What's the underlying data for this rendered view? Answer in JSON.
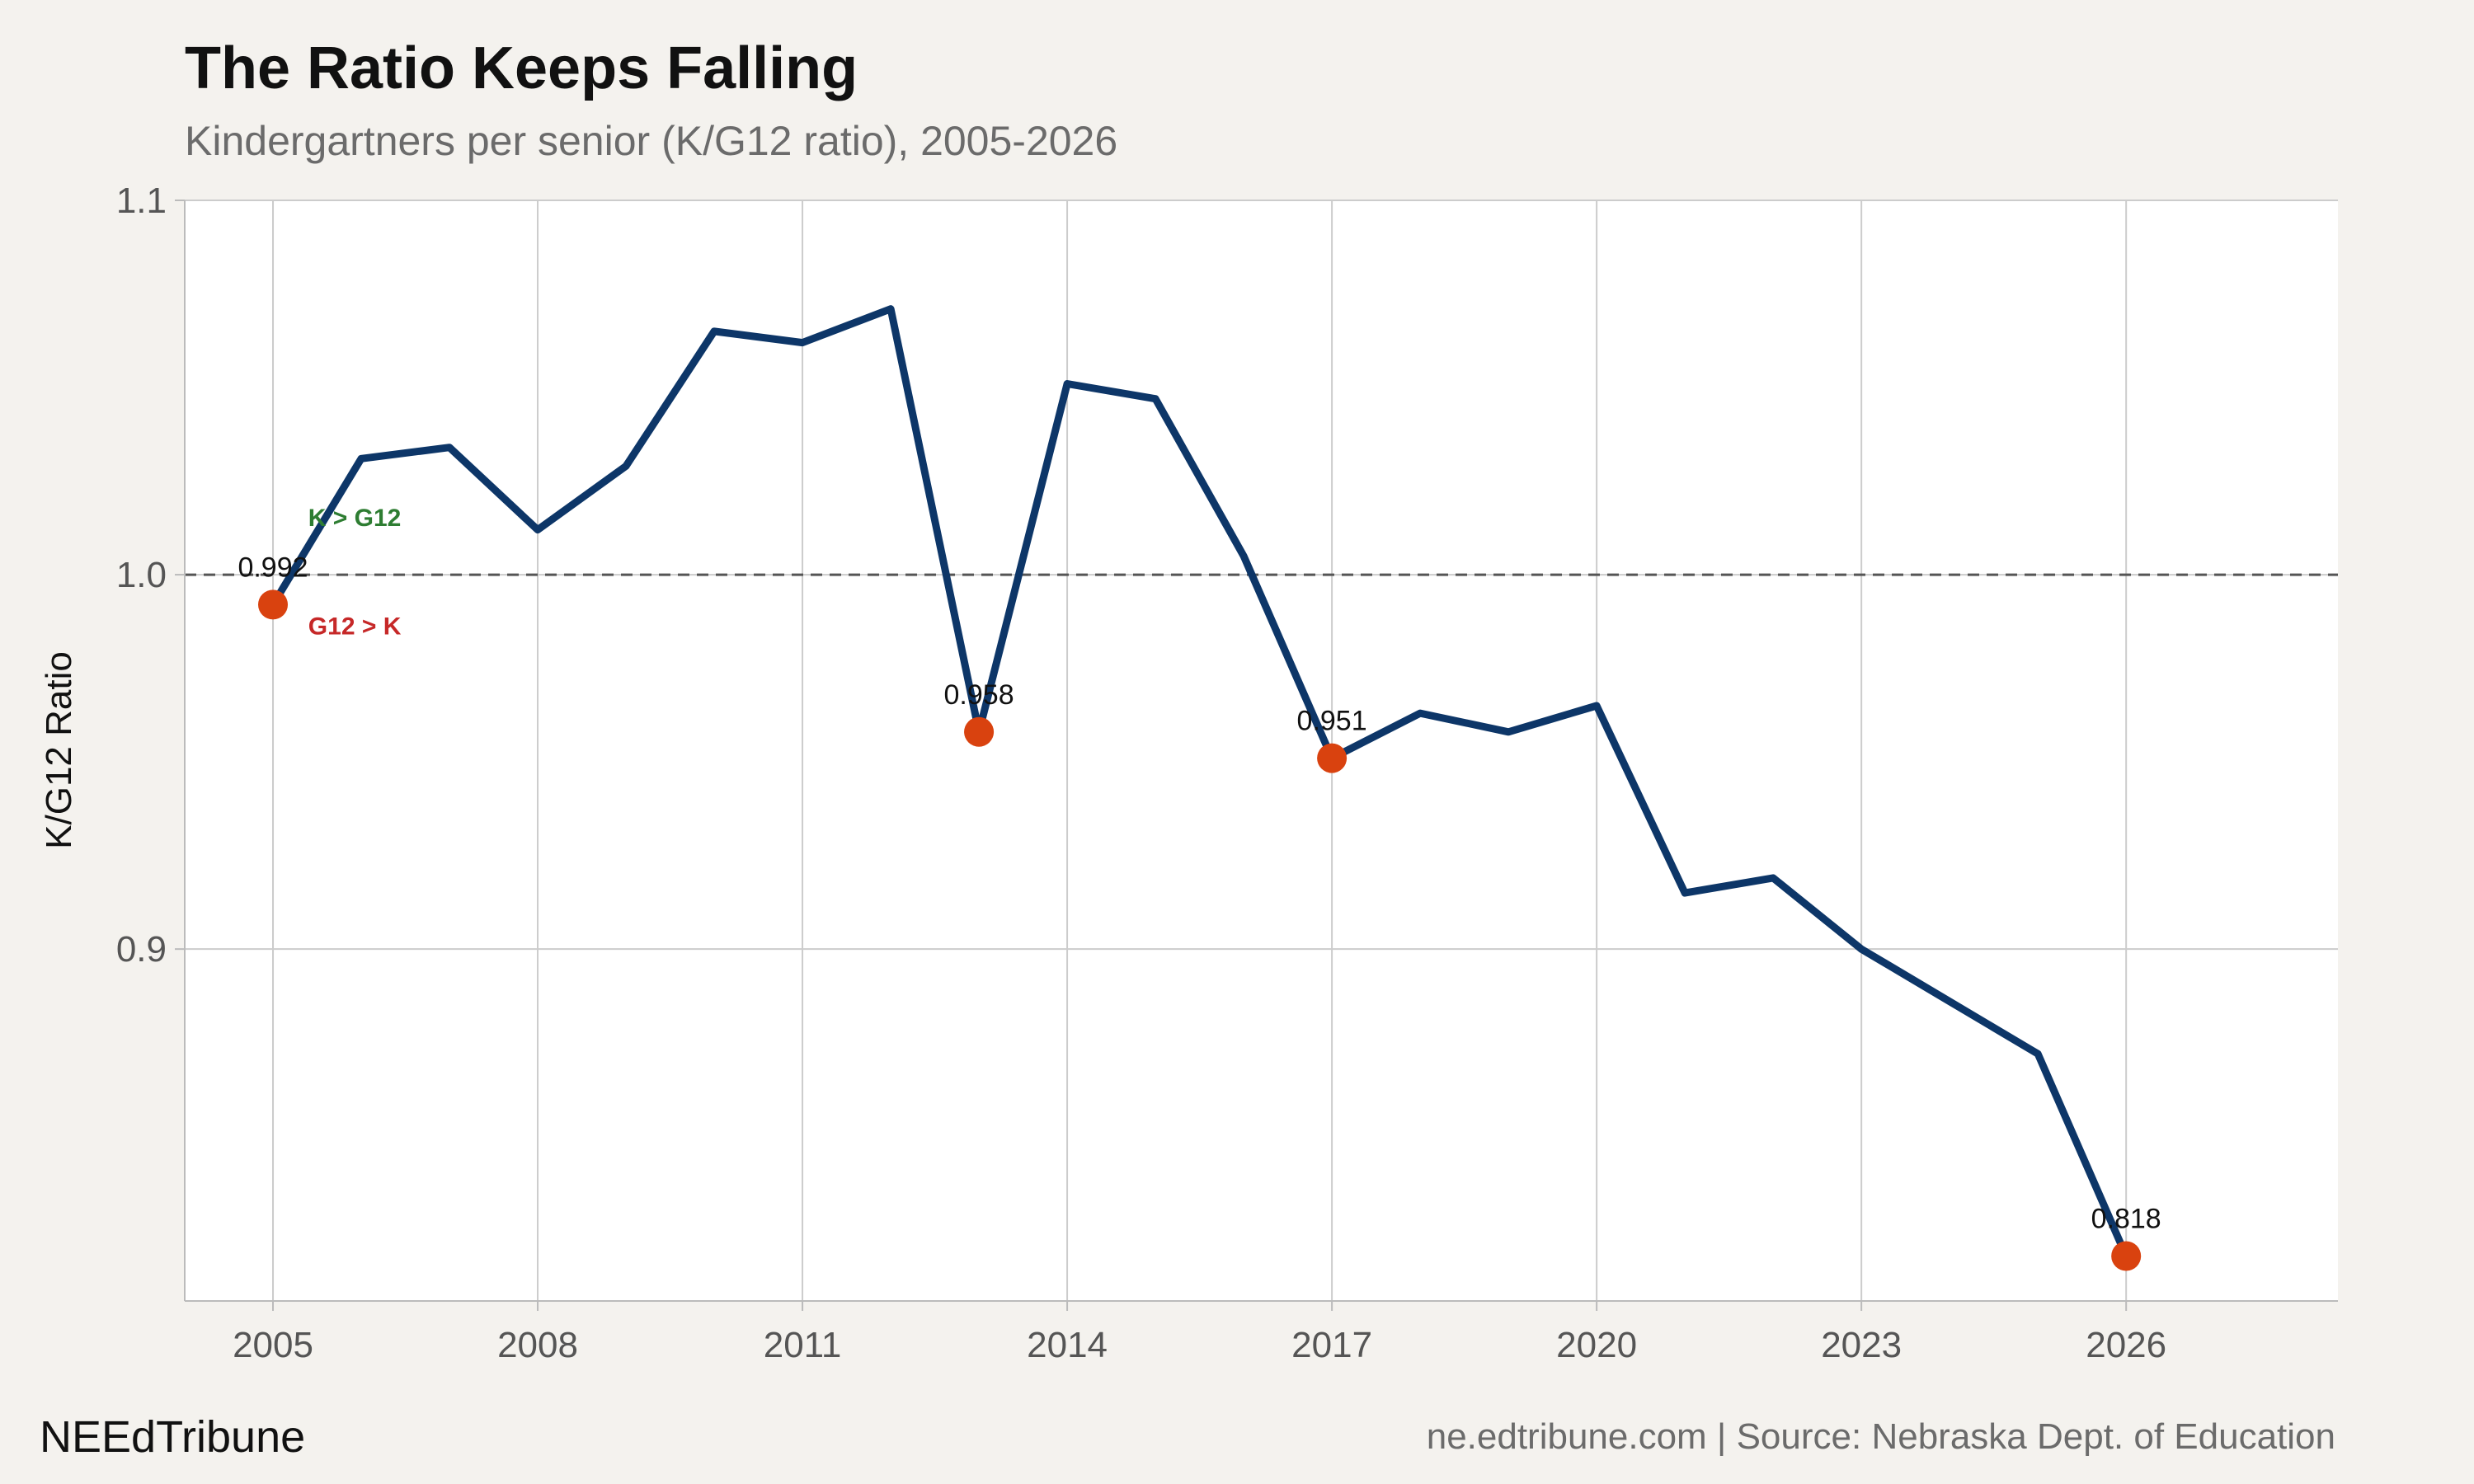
{
  "header": {
    "title": "The Ratio Keeps Falling",
    "subtitle": "Kindergartners per senior (K/G12 ratio), 2005-2026"
  },
  "footer": {
    "brand": "NEEdTribune",
    "source": "ne.edtribune.com | Source: Nebraska Dept. of Education"
  },
  "chart_data": {
    "type": "line",
    "title": "The Ratio Keeps Falling",
    "subtitle": "Kindergartners per senior (K/G12 ratio), 2005-2026",
    "xlabel": "",
    "ylabel": "K/G12 Ratio",
    "xlim": [
      2004.0,
      2028.4
    ],
    "ylim": [
      0.806,
      1.1
    ],
    "x_ticks": [
      2005,
      2008,
      2011,
      2014,
      2017,
      2020,
      2023,
      2026
    ],
    "y_ticks": [
      0.9,
      1.0,
      1.1
    ],
    "y_tick_labels": [
      "0.9",
      "1.0",
      "1.1"
    ],
    "grid": true,
    "reference_line": {
      "y": 1.0,
      "style": "dashed",
      "color": "#555555"
    },
    "reference_labels": [
      {
        "text": "K > G12",
        "x": 2005.4,
        "y": 1.013,
        "color": "#2e7d32"
      },
      {
        "text": "G12 > K",
        "x": 2005.4,
        "y": 0.984,
        "color": "#c62828"
      }
    ],
    "series": [
      {
        "color": "#0d3668",
        "x": [
          2005,
          2006,
          2007,
          2008,
          2009,
          2010,
          2011,
          2012,
          2013,
          2014,
          2015,
          2016,
          2017,
          2018,
          2019,
          2020,
          2021,
          2022,
          2023,
          2024,
          2025,
          2026
        ],
        "values": [
          0.992,
          1.031,
          1.034,
          1.012,
          1.029,
          1.065,
          1.062,
          1.071,
          0.958,
          1.051,
          1.047,
          1.005,
          0.951,
          0.963,
          0.958,
          0.965,
          0.915,
          0.919,
          0.9,
          0.886,
          0.872,
          0.818
        ]
      }
    ],
    "highlights": {
      "color": "#d9420f",
      "points": [
        {
          "x": 2005,
          "y": 0.992,
          "label": "0.992"
        },
        {
          "x": 2013,
          "y": 0.958,
          "label": "0.958"
        },
        {
          "x": 2017,
          "y": 0.951,
          "label": "0.951"
        },
        {
          "x": 2026,
          "y": 0.818,
          "label": "0.818"
        }
      ]
    }
  }
}
